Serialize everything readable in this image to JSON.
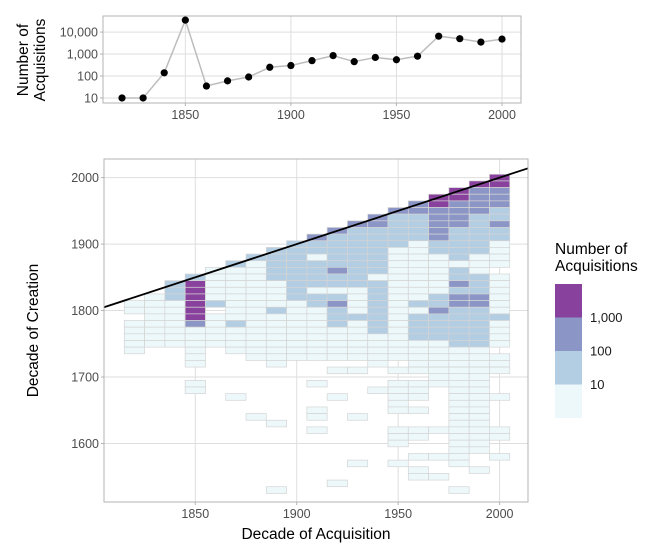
{
  "chart_data": [
    {
      "type": "scatter",
      "ylabel_lines": [
        "Number of",
        "Acquisitions"
      ],
      "xlabel": "",
      "yscale": "log",
      "xlim": [
        1811,
        2009
      ],
      "ylim": [
        5.9,
        54000
      ],
      "xticks": [
        1850,
        1900,
        1950,
        2000
      ],
      "xtick_labels": [
        "1850",
        "1900",
        "1950",
        "2000"
      ],
      "yticks": [
        10,
        100,
        1000,
        10000
      ],
      "ytick_labels": [
        "10",
        "100",
        "1,000",
        "10,000"
      ],
      "grid": true,
      "line_color": "#bdbdbd",
      "point_color": "#000000",
      "x": [
        1820,
        1830,
        1840,
        1850,
        1860,
        1870,
        1880,
        1890,
        1900,
        1910,
        1920,
        1930,
        1940,
        1950,
        1960,
        1970,
        1980,
        1990,
        2000
      ],
      "y": [
        10,
        10,
        140,
        35000,
        35,
        60,
        90,
        250,
        300,
        500,
        850,
        450,
        700,
        550,
        800,
        6500,
        5000,
        3500,
        4800
      ]
    },
    {
      "type": "heatmap",
      "xlabel": "Decade of Acquisition",
      "ylabel": "Decade of Creation",
      "xlim": [
        1805,
        2014
      ],
      "ylim": [
        1512,
        2028
      ],
      "xticks": [
        1850,
        1900,
        1950,
        2000
      ],
      "xtick_labels": [
        "1850",
        "1900",
        "1950",
        "2000"
      ],
      "yticks": [
        1600,
        1700,
        1800,
        1900,
        2000
      ],
      "ytick_labels": [
        "1600",
        "1700",
        "1800",
        "1900",
        "2000"
      ],
      "grid": true,
      "reference_line": {
        "type": "y = x",
        "from": 1805,
        "to": 2014,
        "color": "#000000"
      },
      "legend": {
        "title_lines": [
          "Number of",
          "Acquisitions"
        ],
        "position": "right",
        "breaks": [
          "1,000",
          "100",
          "10"
        ],
        "levels": [
          "< 10",
          "10 - 100",
          "100 - 1,000",
          "> 1,000"
        ],
        "colors": [
          "#edf8fb",
          "#b3cde3",
          "#8c96c6",
          "#88419d"
        ]
      },
      "cell_encoding": "per acquisition decade: characters for creation decades from 'top' downward in 10-year steps; '.' = no acquisitions, 0-3 = legend level index",
      "columns": [
        {
          "decade": 1820,
          "top": 1810,
          "cells": "00.00000"
        },
        {
          "decade": 1830,
          "top": 1820,
          "cells": "00000000"
        },
        {
          "decade": 1840,
          "top": 1840,
          "cells": "1110000000"
        },
        {
          "decade": 1850,
          "top": 1850,
          "cells": "13333332000000..00"
        },
        {
          "decade": 1860,
          "top": 1860,
          "cells": "000001.00000"
        },
        {
          "decade": 1870,
          "top": 1870,
          "cells": "10000000010000......0"
        },
        {
          "decade": 1880,
          "top": 1880,
          "cells": "1000000000000000........0"
        },
        {
          "decade": 1890,
          "top": 1890,
          "cells": "111110000100000000........0.........0"
        },
        {
          "decade": 1900,
          "top": 1900,
          "cells": "111111111000000000"
        },
        {
          "decade": 1910,
          "top": 1910,
          "cells": "2110111101100000000...0...00.0"
        },
        {
          "decade": 1920,
          "top": 1920,
          "cells": "21111121101211100000.0...0............0"
        },
        {
          "decade": 1930,
          "top": 1930,
          "cells": "21111111110000100000 0.0......0......0"
        },
        {
          "decade": 1940,
          "top": 1940,
          "cells": "22111111101111111100000...0"
        },
        {
          "decade": 1950,
          "top": 1950,
          "cells": "21111100000000000000000.0.00000..000..0"
        },
        {
          "decade": 1960,
          "top": 1960,
          "cells": "22111100000000010111100000.000.0..00..0.00"
        },
        {
          "decade": 1970,
          "top": 1970,
          "cells": "3322222110000001121111000000 0......0...0..0"
        },
        {
          "decade": 1980,
          "top": 1980,
          "cells": "332222111110112122111111000000000000000000...0"
        },
        {
          "decade": 1990,
          "top": 1990,
          "cells": "32222111111000111221111110000000000000000..0"
        },
        {
          "decade": 2000,
          "top": 2000,
          "cells": "3322211211 0000.00000010000.000...0....00..0"
        }
      ]
    }
  ]
}
